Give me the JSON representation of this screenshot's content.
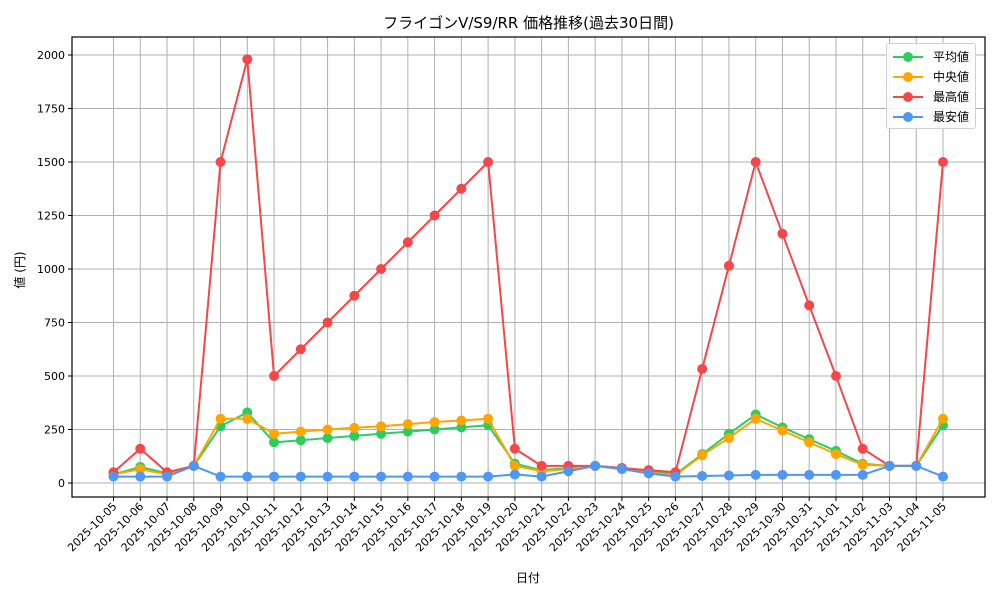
{
  "chart_data": {
    "type": "line",
    "title": "フライゴンV/S9/RR 価格推移(過去30日間)",
    "xlabel": "日付",
    "ylabel": "値 (円)",
    "ylim": [
      -60,
      2075
    ],
    "yticks": [
      0,
      250,
      500,
      750,
      1000,
      1250,
      1500,
      1750,
      2000
    ],
    "grid": true,
    "legend_position": "upper right",
    "categories": [
      "2025-10-05",
      "2025-10-06",
      "2025-10-07",
      "2025-10-08",
      "2025-10-09",
      "2025-10-10",
      "2025-10-11",
      "2025-10-12",
      "2025-10-13",
      "2025-10-14",
      "2025-10-15",
      "2025-10-16",
      "2025-10-17",
      "2025-10-18",
      "2025-10-19",
      "2025-10-20",
      "2025-10-21",
      "2025-10-22",
      "2025-10-23",
      "2025-10-24",
      "2025-10-25",
      "2025-10-26",
      "2025-10-27",
      "2025-10-28",
      "2025-10-29",
      "2025-10-30",
      "2025-10-31",
      "2025-11-01",
      "2025-11-02",
      "2025-11-03",
      "2025-11-04",
      "2025-11-05"
    ],
    "series": [
      {
        "name": "平均値",
        "color": "#2ecc60",
        "values": [
          40,
          75,
          45,
          80,
          265,
          330,
          190,
          200,
          210,
          220,
          230,
          240,
          250,
          260,
          270,
          90,
          60,
          70,
          80,
          70,
          55,
          40,
          135,
          230,
          320,
          260,
          205,
          150,
          90,
          80,
          80,
          270
        ]
      },
      {
        "name": "中央値",
        "color": "#ffa500",
        "values": [
          40,
          65,
          40,
          80,
          300,
          300,
          230,
          240,
          250,
          258,
          265,
          275,
          285,
          292,
          300,
          80,
          55,
          65,
          80,
          65,
          50,
          35,
          130,
          210,
          300,
          245,
          190,
          135,
          85,
          80,
          80,
          300
        ]
      },
      {
        "name": "最高値",
        "color": "#f4474a",
        "values": [
          50,
          160,
          50,
          80,
          1500,
          1980,
          500,
          625,
          750,
          875,
          1000,
          1125,
          1250,
          1375,
          1500,
          160,
          80,
          80,
          80,
          70,
          60,
          50,
          533,
          1015,
          1500,
          1165,
          830,
          500,
          160,
          80,
          80,
          1500
        ]
      },
      {
        "name": "最安値",
        "color": "#4f97f5",
        "values": [
          30,
          30,
          30,
          80,
          30,
          30,
          30,
          30,
          30,
          30,
          30,
          30,
          30,
          30,
          30,
          40,
          30,
          55,
          80,
          65,
          45,
          30,
          33,
          35,
          38,
          38,
          38,
          38,
          38,
          80,
          80,
          30
        ]
      }
    ]
  }
}
